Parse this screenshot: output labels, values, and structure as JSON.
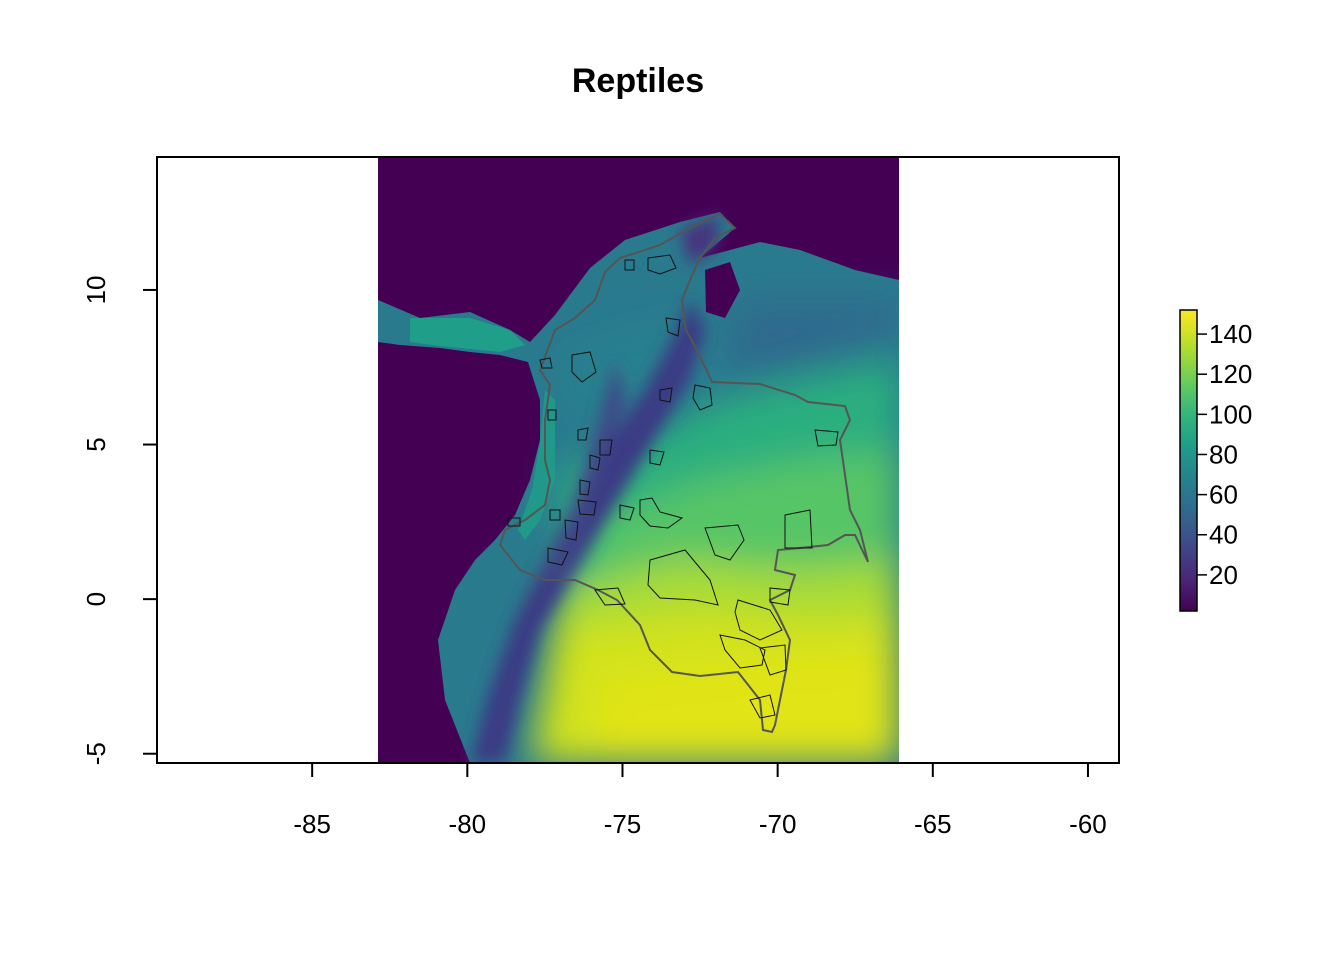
{
  "chart_data": {
    "type": "heatmap",
    "title": "Reptiles",
    "xlabel": "",
    "ylabel": "",
    "xlim": [
      -90,
      -59
    ],
    "ylim": [
      -5.3,
      14.3
    ],
    "x_ticks": [
      {
        "value": -85,
        "label": "-85"
      },
      {
        "value": -80,
        "label": "-80"
      },
      {
        "value": -75,
        "label": "-75"
      },
      {
        "value": -70,
        "label": "-70"
      },
      {
        "value": -65,
        "label": "-65"
      },
      {
        "value": -60,
        "label": "-60"
      }
    ],
    "y_ticks": [
      {
        "value": -5,
        "label": "-5"
      },
      {
        "value": 0,
        "label": "0"
      },
      {
        "value": 5,
        "label": "5"
      },
      {
        "value": 10,
        "label": "10"
      }
    ],
    "raster_extent": {
      "xmin": -82.9,
      "xmax": -65.9,
      "ymin": -5.3,
      "ymax": 14.3
    },
    "colorbar": {
      "range": [
        2,
        152
      ],
      "ticks": [
        {
          "value": 20,
          "label": "20"
        },
        {
          "value": 40,
          "label": "40"
        },
        {
          "value": 60,
          "label": "60"
        },
        {
          "value": 80,
          "label": "80"
        },
        {
          "value": 100,
          "label": "100"
        },
        {
          "value": 120,
          "label": "120"
        },
        {
          "value": 140,
          "label": "140"
        }
      ]
    },
    "palette": [
      "#440154",
      "#482878",
      "#3E4A89",
      "#31688E",
      "#26828E",
      "#1F9E89",
      "#35B779",
      "#6DCD59",
      "#B4DE2C",
      "#FDE725"
    ],
    "grid": false,
    "legend_placement": "right"
  }
}
